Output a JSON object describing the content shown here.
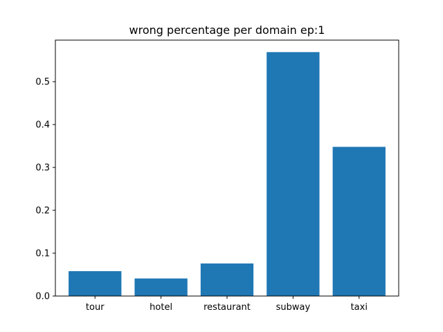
{
  "chart_data": {
    "type": "bar",
    "title": "wrong percentage per domain ep:1",
    "xlabel": "",
    "ylabel": "",
    "categories": [
      "tour",
      "hotel",
      "restaurant",
      "subway",
      "taxi"
    ],
    "values": [
      0.058,
      0.041,
      0.076,
      0.569,
      0.348
    ],
    "ylim": [
      0,
      0.597
    ],
    "yticks": [
      0.0,
      0.1,
      0.2,
      0.3,
      0.4,
      0.5
    ],
    "ytick_labels": [
      "0.0",
      "0.1",
      "0.2",
      "0.3",
      "0.4",
      "0.5"
    ],
    "bar_color": "#1f77b4",
    "grid": false,
    "legend": "none"
  }
}
